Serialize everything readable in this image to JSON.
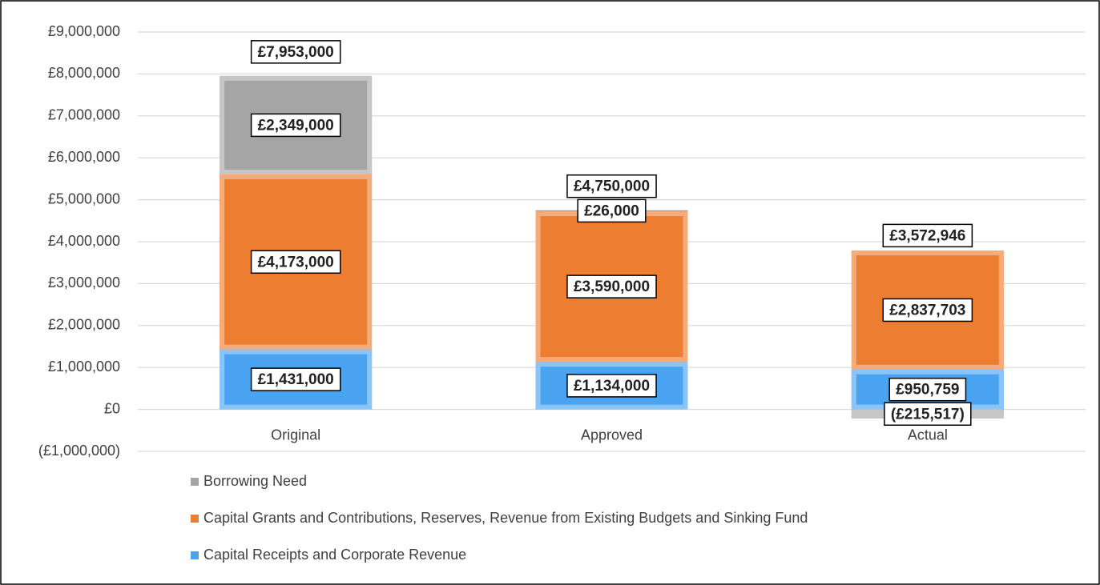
{
  "chart_data": {
    "type": "stacked_bar",
    "categories": [
      "Original",
      "Approved",
      "Actual"
    ],
    "series": [
      {
        "name": "Capital Receipts and Corporate Revenue",
        "color": "#4aa3f0",
        "values": [
          1431000,
          1134000,
          950759
        ],
        "value_labels": [
          "£1,431,000",
          "£1,134,000",
          "£950,759"
        ]
      },
      {
        "name": "Capital Grants and Contributions, Reserves, Revenue from Existing Budgets and Sinking Fund",
        "color": "#ed7d31",
        "values": [
          4173000,
          3590000,
          2837703
        ],
        "value_labels": [
          "£4,173,000",
          "£3,590,000",
          "£2,837,703"
        ]
      },
      {
        "name": "Borrowing Need",
        "color": "#a5a5a5",
        "values": [
          2349000,
          26000,
          -215517
        ],
        "value_labels": [
          "£2,349,000",
          "£26,000",
          "(£215,517)"
        ]
      }
    ],
    "totals": {
      "values": [
        7953000,
        4750000,
        3572946
      ],
      "value_labels": [
        "£7,953,000",
        "£4,750,000",
        "£3,572,946"
      ]
    },
    "ylim": [
      -1000000,
      9000000
    ],
    "yticks": [
      {
        "value": -1000000,
        "label": "(£1,000,000)"
      },
      {
        "value": 0,
        "label": "£0"
      },
      {
        "value": 1000000,
        "label": "£1,000,000"
      },
      {
        "value": 2000000,
        "label": "£2,000,000"
      },
      {
        "value": 3000000,
        "label": "£3,000,000"
      },
      {
        "value": 4000000,
        "label": "£4,000,000"
      },
      {
        "value": 5000000,
        "label": "£5,000,000"
      },
      {
        "value": 6000000,
        "label": "£6,000,000"
      },
      {
        "value": 7000000,
        "label": "£7,000,000"
      },
      {
        "value": 8000000,
        "label": "£8,000,000"
      },
      {
        "value": 9000000,
        "label": "£9,000,000"
      }
    ],
    "grid": true,
    "legend": "bottom"
  }
}
